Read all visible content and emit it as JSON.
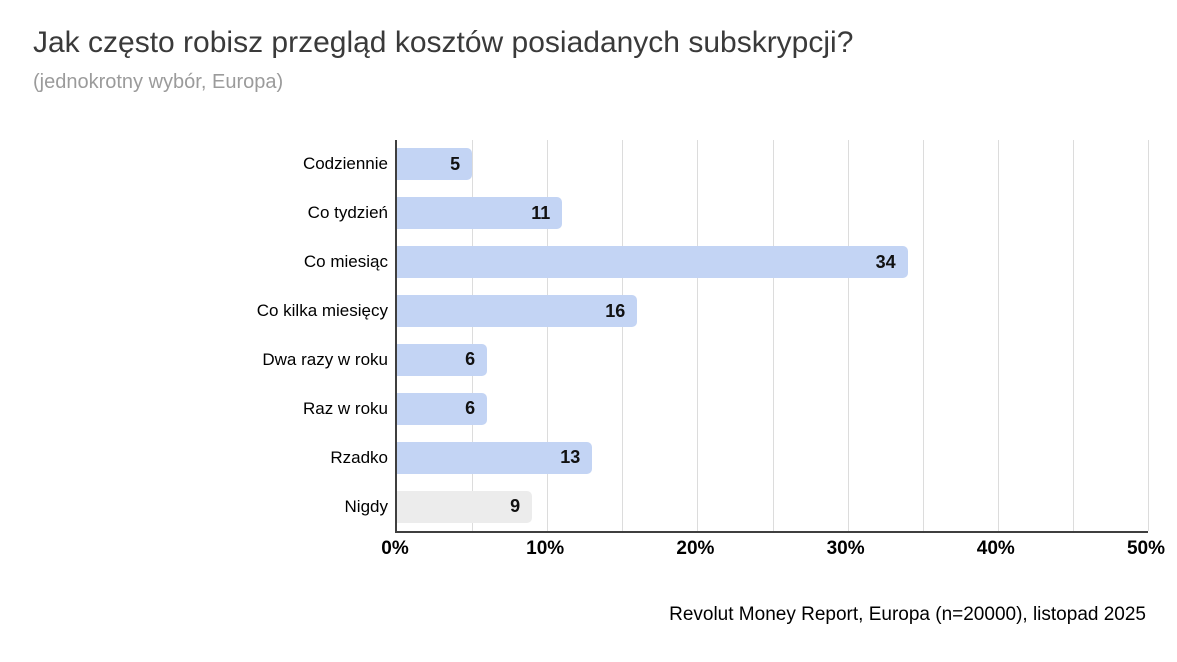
{
  "header": {
    "title": "Jak często robisz przegląd kosztów posiadanych subskrypcji?",
    "subtitle": "(jednokrotny wybór, Europa)"
  },
  "footer": {
    "source": "Revolut Money Report, Europa (n=20000), listopad 2025"
  },
  "chart_data": {
    "type": "bar",
    "orientation": "horizontal",
    "title": "Jak często robisz przegląd kosztów posiadanych subskrypcji?",
    "subtitle": "(jednokrotny wybór, Europa)",
    "categories": [
      "Codziennie",
      "Co tydzień",
      "Co miesiąc",
      "Co kilka miesięcy",
      "Dwa razy w roku",
      "Raz w roku",
      "Rzadko",
      "Nigdy"
    ],
    "values": [
      5,
      11,
      34,
      16,
      6,
      6,
      13,
      9
    ],
    "value_unit": "%",
    "value_labels": [
      "5",
      "11",
      "34",
      "16",
      "6",
      "6",
      "13",
      "9"
    ],
    "xlabel": "",
    "ylabel": "",
    "xlim": [
      0,
      50
    ],
    "x_ticks": [
      "0%",
      "10%",
      "20%",
      "30%",
      "40%",
      "50%"
    ],
    "gridline_step": 5,
    "grid": true,
    "legend": false,
    "bar_colors": [
      "#c3d4f4",
      "#c3d4f4",
      "#c3d4f4",
      "#c3d4f4",
      "#c3d4f4",
      "#c3d4f4",
      "#c3d4f4",
      "#ececec"
    ],
    "colors": {
      "bar_primary": "#c3d4f4",
      "bar_muted": "#ececec",
      "gridline": "#dcdcdc",
      "axis": "#3f3f3f",
      "title": "#3a3a3a",
      "subtitle": "#9b9b9b",
      "text": "#000000"
    },
    "source_note": "Revolut Money Report, Europa (n=20000), listopad 2025"
  }
}
